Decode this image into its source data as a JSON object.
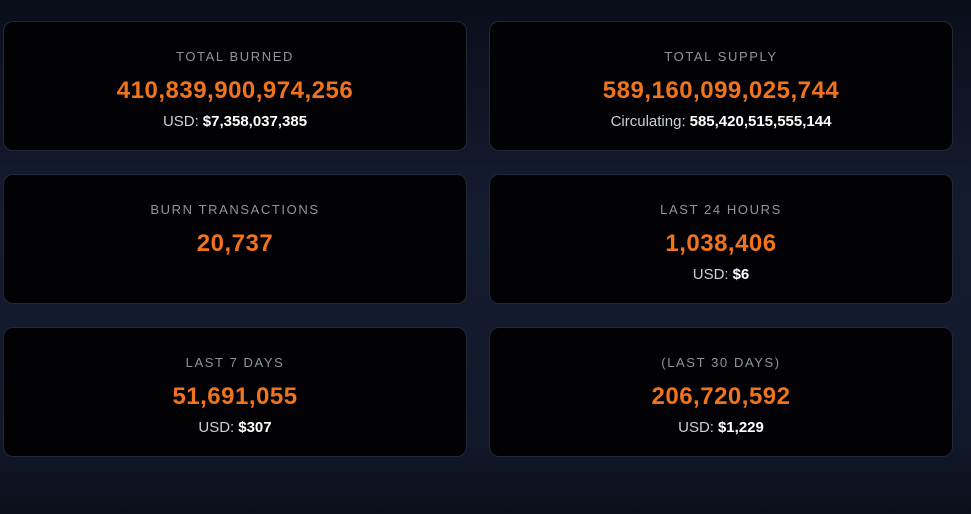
{
  "colors": {
    "accent": "#f0731d",
    "label": "#8e959c",
    "card-bg": "#020204",
    "card-border": "#212938",
    "bg-mid": "#151c30"
  },
  "cards": [
    {
      "label": "TOTAL BURNED",
      "value": "410,839,900,974,256",
      "sub_label": "USD:",
      "sub_value": "$7,358,037,385"
    },
    {
      "label": "TOTAL SUPPLY",
      "value": "589,160,099,025,744",
      "sub_label": "Circulating:",
      "sub_value": "585,420,515,555,144"
    },
    {
      "label": "BURN TRANSACTIONS",
      "value": "20,737",
      "sub_label": "",
      "sub_value": ""
    },
    {
      "label": "LAST 24 HOURS",
      "value": "1,038,406",
      "sub_label": "USD:",
      "sub_value": "$6"
    },
    {
      "label": "LAST 7 DAYS",
      "value": "51,691,055",
      "sub_label": "USD:",
      "sub_value": "$307"
    },
    {
      "label": "(LAST 30 DAYS)",
      "value": "206,720,592",
      "sub_label": "USD:",
      "sub_value": "$1,229"
    }
  ]
}
